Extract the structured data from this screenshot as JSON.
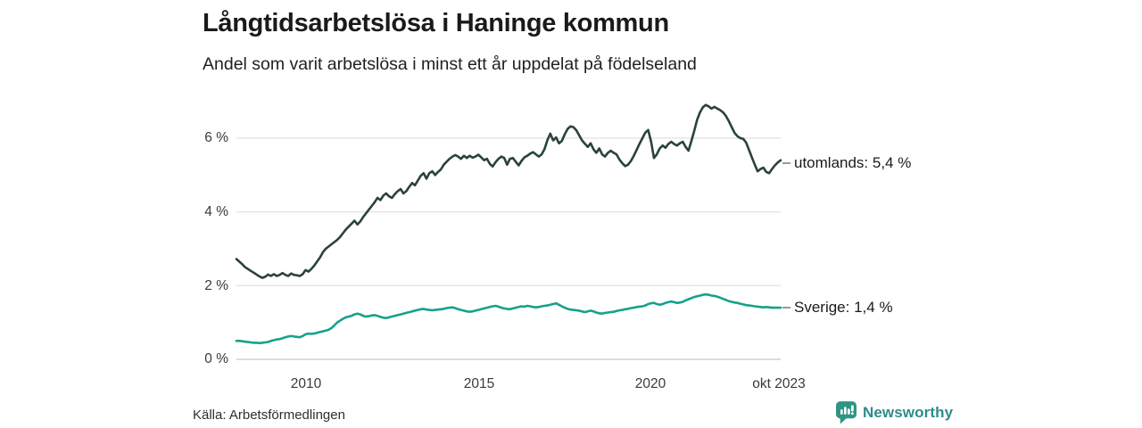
{
  "header": {
    "title": "Långtidsarbetslösa i Haninge kommun",
    "subtitle": "Andel som varit arbetslösa i minst ett år uppdelat på födelseland"
  },
  "chart_data": {
    "type": "line",
    "title": "Långtidsarbetslösa i Haninge kommun",
    "subtitle": "Andel som varit arbetslösa i minst ett år uppdelat på födelseland",
    "xlabel": "",
    "ylabel": "",
    "x_unit": "month",
    "x_range_start": "jan 2008",
    "x_range_end": "okt 2023",
    "ylim": [
      0,
      7
    ],
    "grid": "horizontal",
    "legend_position": "right-end-labels",
    "yaxis": {
      "ticks": [
        {
          "value": 0,
          "label": "0 %"
        },
        {
          "value": 2,
          "label": "2 %"
        },
        {
          "value": 4,
          "label": "4 %"
        },
        {
          "value": 6,
          "label": "6 %"
        }
      ]
    },
    "x_ticks": [
      {
        "label": "2010",
        "month_index": 24
      },
      {
        "label": "2015",
        "month_index": 84
      },
      {
        "label": "2020",
        "month_index": 144
      },
      {
        "label": "okt 2023",
        "month_index": 189
      }
    ],
    "series": [
      {
        "name": "utomlands",
        "end_label": "utomlands: 5,4 %",
        "last_value": "5,4 %",
        "color": "#2a423e",
        "values": [
          2.72,
          2.65,
          2.58,
          2.5,
          2.45,
          2.4,
          2.35,
          2.3,
          2.25,
          2.21,
          2.24,
          2.3,
          2.26,
          2.31,
          2.26,
          2.29,
          2.34,
          2.29,
          2.26,
          2.33,
          2.29,
          2.28,
          2.26,
          2.31,
          2.42,
          2.38,
          2.45,
          2.54,
          2.65,
          2.76,
          2.9,
          3.0,
          3.06,
          3.12,
          3.18,
          3.24,
          3.32,
          3.42,
          3.52,
          3.6,
          3.68,
          3.76,
          3.66,
          3.74,
          3.86,
          3.96,
          4.06,
          4.16,
          4.26,
          4.38,
          4.32,
          4.44,
          4.5,
          4.42,
          4.38,
          4.48,
          4.56,
          4.62,
          4.5,
          4.56,
          4.68,
          4.78,
          4.72,
          4.85,
          4.98,
          5.05,
          4.9,
          5.05,
          5.1,
          5.0,
          5.08,
          5.15,
          5.28,
          5.36,
          5.44,
          5.5,
          5.54,
          5.5,
          5.44,
          5.52,
          5.46,
          5.52,
          5.47,
          5.5,
          5.55,
          5.48,
          5.4,
          5.44,
          5.3,
          5.23,
          5.35,
          5.44,
          5.5,
          5.46,
          5.28,
          5.44,
          5.46,
          5.36,
          5.26,
          5.38,
          5.48,
          5.52,
          5.58,
          5.62,
          5.56,
          5.5,
          5.56,
          5.7,
          5.95,
          6.12,
          5.94,
          6.02,
          5.86,
          5.92,
          6.1,
          6.25,
          6.32,
          6.3,
          6.22,
          6.08,
          5.94,
          5.85,
          5.76,
          5.86,
          5.7,
          5.6,
          5.72,
          5.56,
          5.5,
          5.6,
          5.66,
          5.6,
          5.56,
          5.42,
          5.32,
          5.24,
          5.28,
          5.38,
          5.52,
          5.68,
          5.85,
          6.0,
          6.15,
          6.22,
          5.9,
          5.46,
          5.56,
          5.72,
          5.8,
          5.74,
          5.84,
          5.9,
          5.84,
          5.8,
          5.86,
          5.9,
          5.76,
          5.66,
          5.92,
          6.2,
          6.5,
          6.7,
          6.84,
          6.9,
          6.86,
          6.8,
          6.85,
          6.8,
          6.76,
          6.7,
          6.6,
          6.46,
          6.3,
          6.14,
          6.05,
          6.0,
          5.98,
          5.88,
          5.68,
          5.48,
          5.28,
          5.1,
          5.16,
          5.2,
          5.08,
          5.05,
          5.16,
          5.26,
          5.34,
          5.4
        ]
      },
      {
        "name": "Sverige",
        "end_label": "Sverige: 1,4 %",
        "last_value": "1,4 %",
        "color": "#16a18c",
        "values": [
          0.5,
          0.5,
          0.49,
          0.48,
          0.47,
          0.46,
          0.45,
          0.45,
          0.44,
          0.45,
          0.46,
          0.47,
          0.5,
          0.52,
          0.54,
          0.55,
          0.57,
          0.6,
          0.62,
          0.63,
          0.62,
          0.61,
          0.6,
          0.63,
          0.68,
          0.7,
          0.69,
          0.7,
          0.72,
          0.74,
          0.76,
          0.78,
          0.8,
          0.85,
          0.92,
          1.0,
          1.05,
          1.1,
          1.14,
          1.16,
          1.18,
          1.22,
          1.24,
          1.22,
          1.18,
          1.16,
          1.17,
          1.19,
          1.2,
          1.18,
          1.15,
          1.13,
          1.12,
          1.14,
          1.16,
          1.18,
          1.2,
          1.22,
          1.24,
          1.26,
          1.28,
          1.3,
          1.32,
          1.34,
          1.36,
          1.37,
          1.35,
          1.34,
          1.33,
          1.34,
          1.35,
          1.36,
          1.37,
          1.39,
          1.4,
          1.41,
          1.39,
          1.36,
          1.34,
          1.32,
          1.3,
          1.29,
          1.3,
          1.32,
          1.34,
          1.36,
          1.38,
          1.4,
          1.42,
          1.44,
          1.45,
          1.43,
          1.4,
          1.38,
          1.37,
          1.36,
          1.38,
          1.4,
          1.42,
          1.44,
          1.43,
          1.45,
          1.44,
          1.42,
          1.41,
          1.42,
          1.44,
          1.45,
          1.46,
          1.48,
          1.5,
          1.52,
          1.48,
          1.44,
          1.4,
          1.37,
          1.35,
          1.34,
          1.33,
          1.32,
          1.3,
          1.28,
          1.3,
          1.32,
          1.3,
          1.27,
          1.25,
          1.24,
          1.26,
          1.27,
          1.28,
          1.29,
          1.31,
          1.33,
          1.34,
          1.36,
          1.37,
          1.39,
          1.4,
          1.42,
          1.43,
          1.44,
          1.46,
          1.5,
          1.52,
          1.53,
          1.5,
          1.48,
          1.5,
          1.53,
          1.55,
          1.57,
          1.55,
          1.53,
          1.54,
          1.56,
          1.6,
          1.63,
          1.66,
          1.69,
          1.71,
          1.73,
          1.75,
          1.76,
          1.75,
          1.73,
          1.72,
          1.7,
          1.67,
          1.64,
          1.61,
          1.58,
          1.56,
          1.54,
          1.53,
          1.51,
          1.49,
          1.47,
          1.46,
          1.45,
          1.44,
          1.43,
          1.42,
          1.41,
          1.42,
          1.41,
          1.4,
          1.4,
          1.4,
          1.4
        ]
      }
    ]
  },
  "footer": {
    "source": "Källa: Arbetsförmedlingen",
    "brand_name": "Newsworthy",
    "brand_color": "#2e8b8b",
    "brand_icon": "bar-chart-speech-bubble",
    "brand_icon_color": "#2e9484"
  }
}
